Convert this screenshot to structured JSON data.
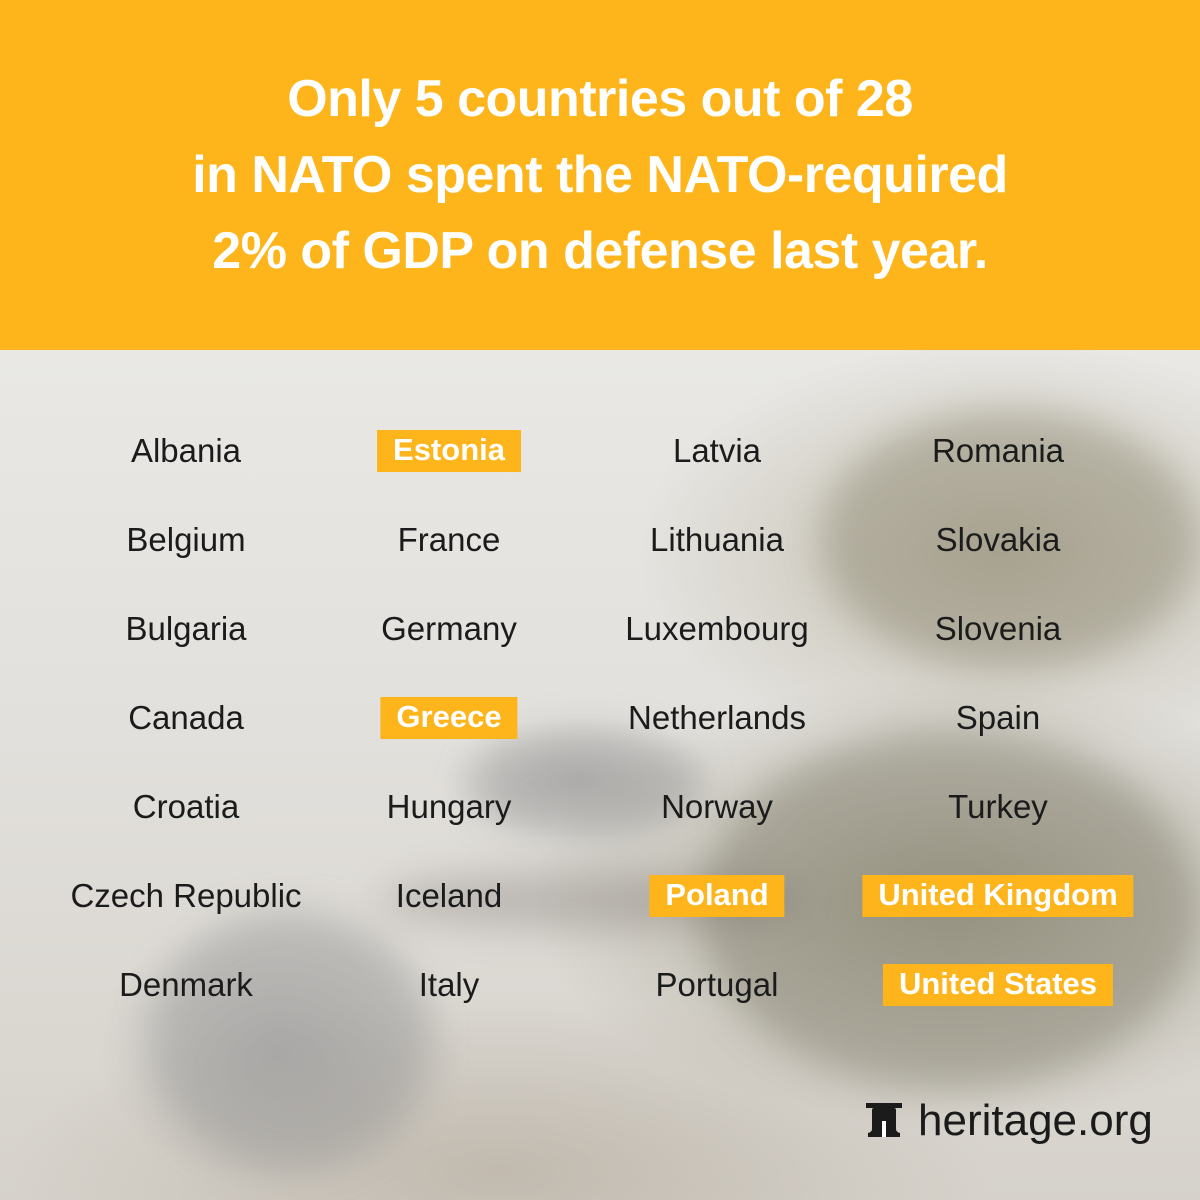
{
  "headline": {
    "lines": [
      "Only 5 countries out of 28",
      "in NATO spent the NATO-required",
      "2% of GDP on defense last year."
    ]
  },
  "columns": [
    [
      {
        "name": "Albania",
        "highlight": false
      },
      {
        "name": "Belgium",
        "highlight": false
      },
      {
        "name": "Bulgaria",
        "highlight": false
      },
      {
        "name": "Canada",
        "highlight": false
      },
      {
        "name": "Croatia",
        "highlight": false
      },
      {
        "name": "Czech Republic",
        "highlight": false
      },
      {
        "name": "Denmark",
        "highlight": false
      }
    ],
    [
      {
        "name": "Estonia",
        "highlight": true
      },
      {
        "name": "France",
        "highlight": false
      },
      {
        "name": "Germany",
        "highlight": false
      },
      {
        "name": "Greece",
        "highlight": true
      },
      {
        "name": "Hungary",
        "highlight": false
      },
      {
        "name": "Iceland",
        "highlight": false
      },
      {
        "name": "Italy",
        "highlight": false
      }
    ],
    [
      {
        "name": "Latvia",
        "highlight": false
      },
      {
        "name": "Lithuania",
        "highlight": false
      },
      {
        "name": "Luxembourg",
        "highlight": false
      },
      {
        "name": "Netherlands",
        "highlight": false
      },
      {
        "name": "Norway",
        "highlight": false
      },
      {
        "name": "Poland",
        "highlight": true
      },
      {
        "name": "Portugal",
        "highlight": false
      }
    ],
    [
      {
        "name": "Romania",
        "highlight": false
      },
      {
        "name": "Slovakia",
        "highlight": false
      },
      {
        "name": "Slovenia",
        "highlight": false
      },
      {
        "name": "Spain",
        "highlight": false
      },
      {
        "name": "Turkey",
        "highlight": false
      },
      {
        "name": "United Kingdom",
        "highlight": true
      },
      {
        "name": "United States",
        "highlight": true
      }
    ]
  ],
  "footer": {
    "brand": "heritage.org",
    "logo_icon": "liberty-bell-icon"
  },
  "colors": {
    "accent": "#fdb51b",
    "text": "#1b1b1b",
    "headline_text": "#ffffff"
  }
}
